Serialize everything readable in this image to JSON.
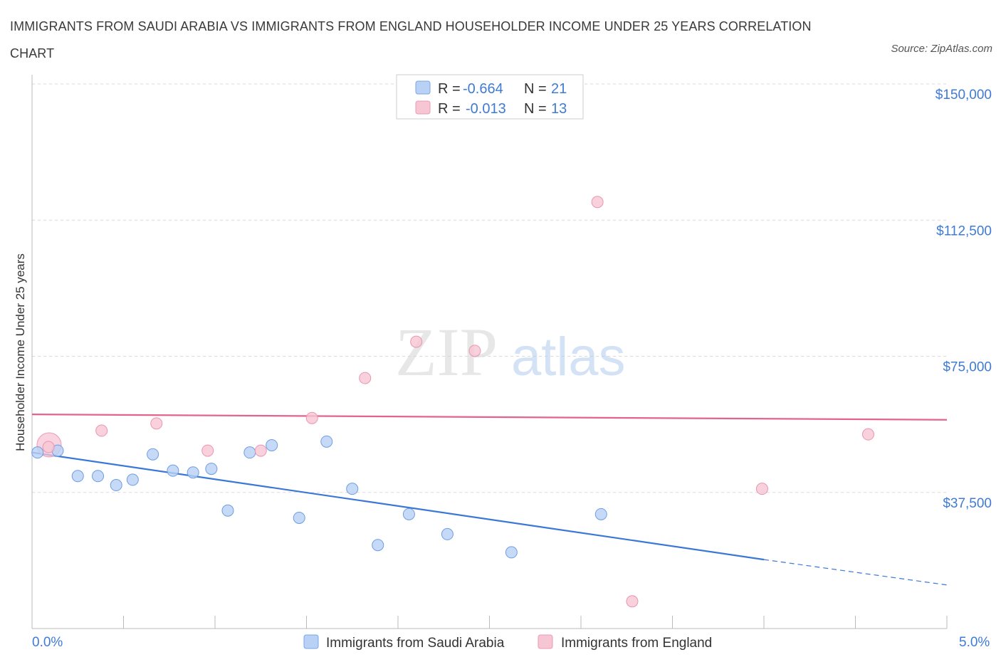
{
  "title": "IMMIGRANTS FROM SAUDI ARABIA VS IMMIGRANTS FROM ENGLAND HOUSEHOLDER INCOME UNDER 25 YEARS CORRELATION CHART",
  "source": "Source: ZipAtlas.com",
  "watermark": {
    "zip": "ZIP",
    "atlas": "atlas"
  },
  "colors": {
    "blue": "#3a77d6",
    "pink": "#e4638d",
    "blue_fill": "#b8d1f5",
    "pink_fill": "#f7c6d5",
    "tick": "#3f7bd4",
    "grid": "#d9d9d9"
  },
  "legend": {
    "rows": [
      {
        "r_label": "R =",
        "r_value": "-0.664",
        "n_label": "N =",
        "n_value": "21"
      },
      {
        "r_label": "R =",
        "r_value": "-0.013",
        "n_label": "N =",
        "n_value": "13"
      }
    ]
  },
  "chart_data": {
    "type": "scatter",
    "xlabel": "",
    "ylabel": "Householder Income Under 25 years",
    "xlim": [
      0,
      5
    ],
    "ylim": [
      0,
      150000
    ],
    "x_tick_labels": [
      "0.0%",
      "5.0%"
    ],
    "y_ticks": [
      37500,
      75000,
      112500,
      150000
    ],
    "y_tick_labels": [
      "$37,500",
      "$75,000",
      "$112,500",
      "$150,000"
    ],
    "grid": "horizontal dashed",
    "legend_position": "top-center",
    "series": [
      {
        "name": "Immigrants from Saudi Arabia",
        "color": "blue",
        "points": [
          [
            0.03,
            48500
          ],
          [
            0.14,
            49000
          ],
          [
            0.25,
            42000
          ],
          [
            0.36,
            42000
          ],
          [
            0.46,
            39500
          ],
          [
            0.55,
            41000
          ],
          [
            0.66,
            48000
          ],
          [
            0.77,
            43500
          ],
          [
            0.88,
            43000
          ],
          [
            0.98,
            44000
          ],
          [
            1.07,
            32500
          ],
          [
            1.19,
            48500
          ],
          [
            1.31,
            50500
          ],
          [
            1.46,
            30500
          ],
          [
            1.61,
            51500
          ],
          [
            1.75,
            38500
          ],
          [
            1.89,
            23000
          ],
          [
            2.06,
            31500
          ],
          [
            2.27,
            26000
          ],
          [
            2.62,
            21000
          ],
          [
            3.11,
            31500
          ]
        ],
        "trend": {
          "x0": 0.0,
          "y0": 48500,
          "x1": 4.0,
          "y1": 19000,
          "dashed_to_x": 5.0,
          "dashed_y": 12000
        }
      },
      {
        "name": "Immigrants from England",
        "color": "pink",
        "points": [
          [
            0.09,
            50000
          ],
          [
            0.38,
            54500
          ],
          [
            0.68,
            56500
          ],
          [
            0.96,
            49000
          ],
          [
            1.25,
            49000
          ],
          [
            1.53,
            58000
          ],
          [
            1.82,
            69000
          ],
          [
            2.1,
            79000
          ],
          [
            2.42,
            76500
          ],
          [
            3.09,
            117500
          ],
          [
            3.99,
            38500
          ],
          [
            4.57,
            53500
          ],
          [
            3.28,
            7500
          ]
        ],
        "trend": {
          "x0": 0.0,
          "y0": 59000,
          "x1": 5.0,
          "y1": 57500
        }
      }
    ]
  }
}
